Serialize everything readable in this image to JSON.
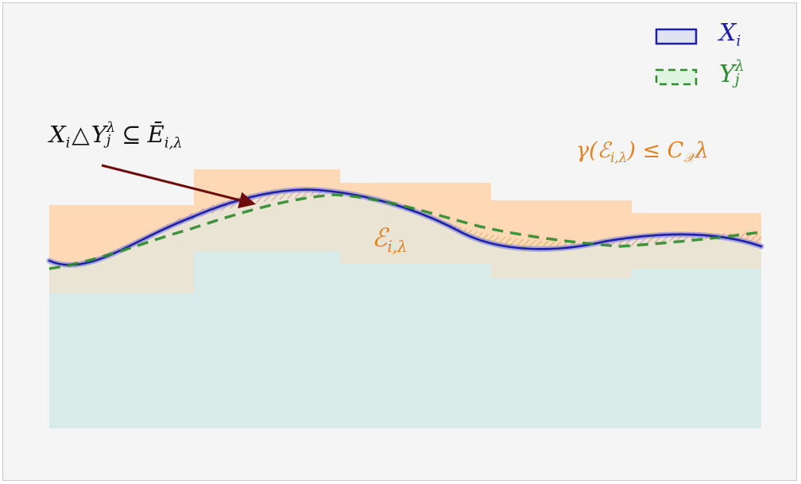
{
  "legend": {
    "x_label": "X",
    "x_sub": "i",
    "y_label": "Y",
    "y_sub": "j",
    "y_sup": "λ"
  },
  "annotation": {
    "symdiff_left": "X",
    "symdiff_left_sub": "i",
    "symdiff_op": "△",
    "symdiff_right": "Y",
    "symdiff_right_sup": "λ",
    "symdiff_right_sub": "j",
    "subset_op": "⊆",
    "closure_label": "Ē",
    "closure_sub": "i,λ"
  },
  "region_label": {
    "text": "ℰ",
    "sub": "i,λ"
  },
  "bound": {
    "text_left": "γ(ℰ",
    "sub": "i,λ",
    "text_right": ") ≤ C",
    "c_sub": "𝒳",
    "lambda": "λ"
  },
  "colors": {
    "x_curve": "#1f1fa8",
    "x_fill": "#e0e3f3",
    "y_curve": "#2e8b2e",
    "y_fill": "#dff5df",
    "cover_orange": "#ffd8b5",
    "cover_teal": "#d9ece9",
    "error_label": "#e2801f",
    "arrow": "#6e0b0b",
    "hatch_pink": "#d96b80",
    "hatch_olive": "#a9a23a"
  }
}
